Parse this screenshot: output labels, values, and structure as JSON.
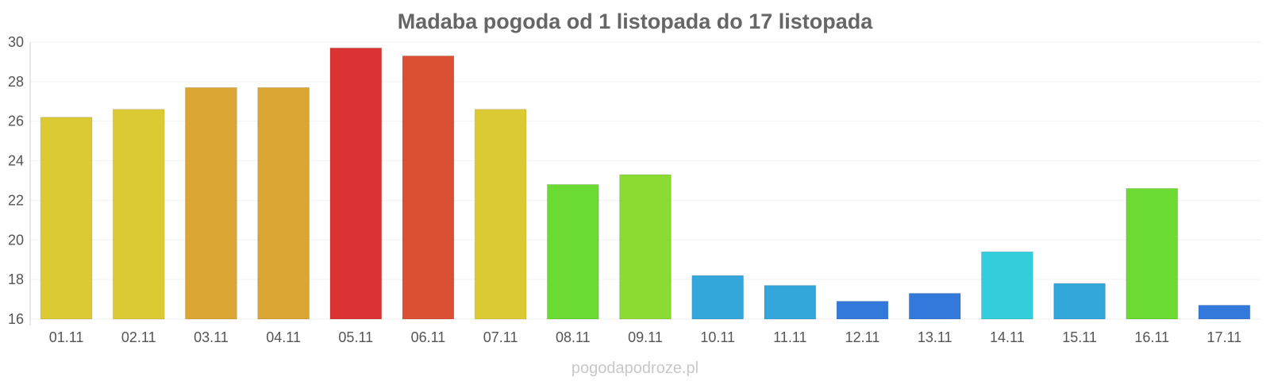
{
  "chart_data": {
    "type": "bar",
    "title": "Madaba pogoda od 1 listopada do 17 listopada",
    "xlabel": "",
    "ylabel": "",
    "ylim": [
      16,
      30
    ],
    "yticks": [
      16,
      18,
      20,
      22,
      24,
      26,
      28,
      30
    ],
    "categories": [
      "01.11",
      "02.11",
      "03.11",
      "04.11",
      "05.11",
      "06.11",
      "07.11",
      "08.11",
      "09.11",
      "10.11",
      "11.11",
      "12.11",
      "13.11",
      "14.11",
      "15.11",
      "16.11",
      "17.11"
    ],
    "values": [
      26.2,
      26.6,
      27.7,
      27.7,
      29.7,
      29.3,
      26.6,
      22.8,
      23.3,
      18.2,
      17.7,
      16.9,
      17.3,
      19.4,
      17.8,
      22.6,
      16.7
    ],
    "colors": [
      "#dbca33",
      "#dbca33",
      "#dba633",
      "#dba633",
      "#db3333",
      "#db5033",
      "#dbca33",
      "#6bdb33",
      "#8bdb33",
      "#33a6db",
      "#33a6db",
      "#3378db",
      "#3378db",
      "#33cedb",
      "#33a6db",
      "#6bdb33",
      "#3378db"
    ],
    "grid": true,
    "legend": "none"
  },
  "footer": {
    "watermark": "pogodapodroze.pl"
  }
}
